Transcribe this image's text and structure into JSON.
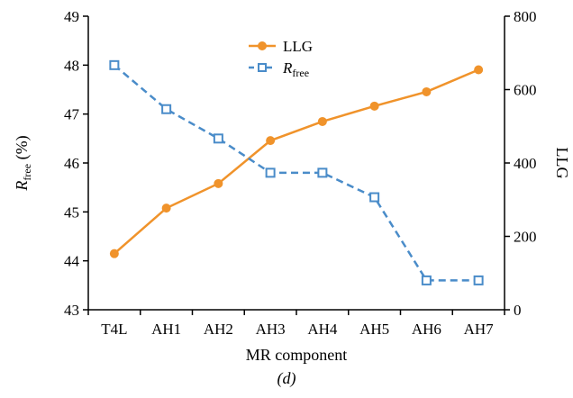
{
  "chart_data": {
    "type": "line",
    "panel_label": "(d)",
    "xlabel": "MR component",
    "categories": [
      "T4L",
      "AH1",
      "AH2",
      "AH3",
      "AH4",
      "AH5",
      "AH6",
      "AH7"
    ],
    "left_axis": {
      "label_main": "R",
      "label_sub": "free",
      "label_suffix": " (%)",
      "ylim": [
        43,
        49
      ],
      "ticks": [
        43,
        44,
        45,
        46,
        47,
        48,
        49
      ]
    },
    "right_axis": {
      "label": "LLG",
      "ylim": [
        0,
        800
      ],
      "ticks": [
        0,
        200,
        400,
        600,
        800
      ]
    },
    "legend": {
      "placement": "top-center",
      "items": [
        {
          "label_main": "LLG",
          "label_sub": ""
        },
        {
          "label_main": "R",
          "label_sub": "free"
        }
      ]
    },
    "series": [
      {
        "name": "LLG",
        "axis": "right",
        "color": "#F0932B",
        "marker": "circle",
        "line_style": "solid",
        "values": [
          153,
          277,
          344,
          461,
          513,
          555,
          594,
          654
        ]
      },
      {
        "name": "Rfree",
        "axis": "left",
        "color": "#4A8CC9",
        "marker": "square-open",
        "line_style": "dashed",
        "values": [
          48.0,
          47.1,
          46.5,
          45.8,
          45.8,
          45.3,
          43.6,
          43.6
        ]
      }
    ],
    "grid": false
  }
}
